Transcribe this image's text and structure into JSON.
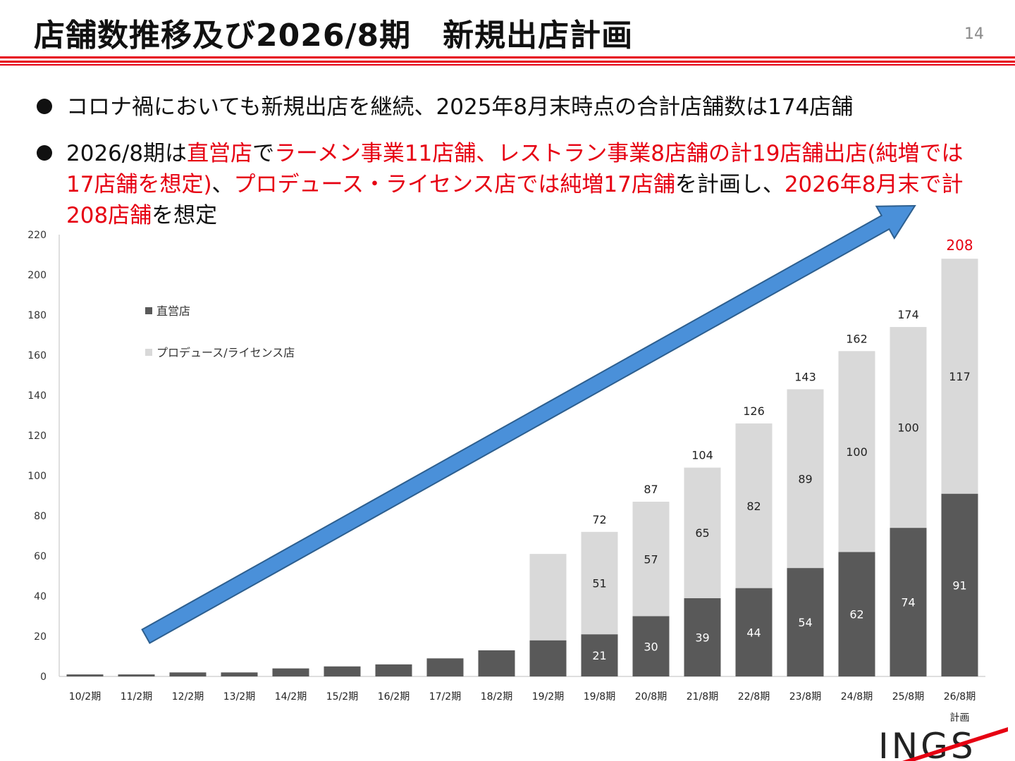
{
  "header": {
    "title": "店舗数推移及び2026/8期　新規出店計画",
    "page_number": "14"
  },
  "bullets": [
    {
      "parts": [
        {
          "text": "コロナ禍においても新規出店を継続、2025年8月末時点の合計店舗数は174店舗",
          "red": false
        }
      ]
    },
    {
      "parts": [
        {
          "text": "2026/8期は",
          "red": false
        },
        {
          "text": "直営店",
          "red": true
        },
        {
          "text": "で",
          "red": false
        },
        {
          "text": "ラーメン事業11店舗、レストラン事業8店舗の計19店舗出店(純増では17店舗を想定)",
          "red": true
        },
        {
          "text": "、",
          "red": false
        },
        {
          "text": "プロデュース・ライセンス店では純増17店舗",
          "red": true
        },
        {
          "text": "を計画し、",
          "red": false
        },
        {
          "text": "2026年8月末で計208店舗",
          "red": true
        },
        {
          "text": "を想定",
          "red": false
        }
      ]
    }
  ],
  "colors": {
    "accent": "#e60012",
    "direct_bar": "#595959",
    "license_bar": "#d9d9d9",
    "arrow_fill": "#4a90d9",
    "arrow_stroke": "#2d5f8f"
  },
  "chart_data": {
    "type": "bar",
    "stacked": true,
    "categories": [
      "10/2期",
      "11/2期",
      "12/2期",
      "13/2期",
      "14/2期",
      "15/2期",
      "16/2期",
      "17/2期",
      "18/2期",
      "19/2期",
      "19/8期",
      "20/8期",
      "21/8期",
      "22/8期",
      "23/8期",
      "24/8期",
      "25/8期",
      "26/8期"
    ],
    "category_sublabels": [
      "",
      "",
      "",
      "",
      "",
      "",
      "",
      "",
      "",
      "",
      "",
      "",
      "",
      "",
      "",
      "",
      "",
      "計画"
    ],
    "series": [
      {
        "name": "直営店",
        "values": [
          1,
          1,
          2,
          2,
          4,
          5,
          6,
          9,
          13,
          18,
          21,
          30,
          39,
          44,
          54,
          62,
          74,
          91
        ]
      },
      {
        "name": "プロデュース/ライセンス店",
        "values": [
          0,
          0,
          0,
          0,
          0,
          0,
          0,
          0,
          0,
          43,
          51,
          57,
          65,
          82,
          89,
          100,
          100,
          117
        ]
      }
    ],
    "segment_labels": {
      "direct": [
        "",
        "",
        "",
        "",
        "",
        "",
        "",
        "",
        "",
        "",
        "21",
        "30",
        "39",
        "44",
        "54",
        "62",
        "74",
        "91"
      ],
      "license": [
        "",
        "",
        "",
        "",
        "",
        "",
        "",
        "",
        "",
        "",
        "51",
        "57",
        "65",
        "82",
        "89",
        "100",
        "100",
        "117"
      ]
    },
    "total_labels": [
      "",
      "",
      "",
      "",
      "",
      "",
      "",
      "",
      "",
      "",
      "72",
      "87",
      "104",
      "126",
      "143",
      "162",
      "174",
      "208"
    ],
    "highlight_total_index": 17,
    "y_ticks": [
      0,
      20,
      40,
      60,
      80,
      100,
      120,
      140,
      160,
      180,
      200,
      220
    ],
    "ylim": [
      0,
      220
    ],
    "legend_position": "top-left",
    "annotation": "upward growth arrow across chart"
  },
  "logo": {
    "text": "INGS"
  }
}
